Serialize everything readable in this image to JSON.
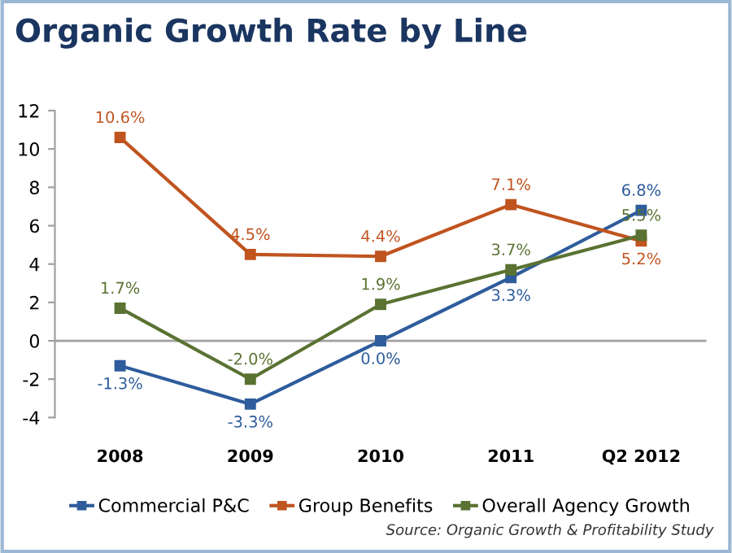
{
  "chart_data": {
    "type": "line",
    "title": "Organic Growth Rate by Line",
    "categories": [
      "2008",
      "2009",
      "2010",
      "2011",
      "Q2 2012"
    ],
    "series": [
      {
        "name": "Commercial P&C",
        "color": "#2e5c9c",
        "values": [
          -1.3,
          -3.3,
          0.0,
          3.3,
          6.8
        ],
        "value_labels": [
          "-1.3%",
          "-3.3%",
          "0.0%",
          "3.3%",
          "6.8%"
        ]
      },
      {
        "name": "Group Benefits",
        "color": "#c0541f",
        "values": [
          10.6,
          4.5,
          4.4,
          7.1,
          5.2
        ],
        "value_labels": [
          "10.6%",
          "4.5%",
          "4.4%",
          "7.1%",
          "5.2%"
        ]
      },
      {
        "name": "Overall Agency Growth",
        "color": "#5a7232",
        "values": [
          1.7,
          -2.0,
          1.9,
          3.7,
          5.5
        ],
        "value_labels": [
          "1.7%",
          "-2.0%",
          "1.9%",
          "3.7%",
          "5.5%"
        ]
      }
    ],
    "ylim": [
      -4,
      12
    ],
    "yticks": [
      -4,
      -2,
      0,
      2,
      4,
      6,
      8,
      10,
      12
    ],
    "marker": "square",
    "line_style": "solid",
    "legend": "bottom",
    "ref_lines": [
      {
        "axis": "y",
        "value": 0,
        "color": "#a0a0a0"
      }
    ],
    "annotations": [
      "Source: Organic Growth & Profitability Study"
    ]
  }
}
